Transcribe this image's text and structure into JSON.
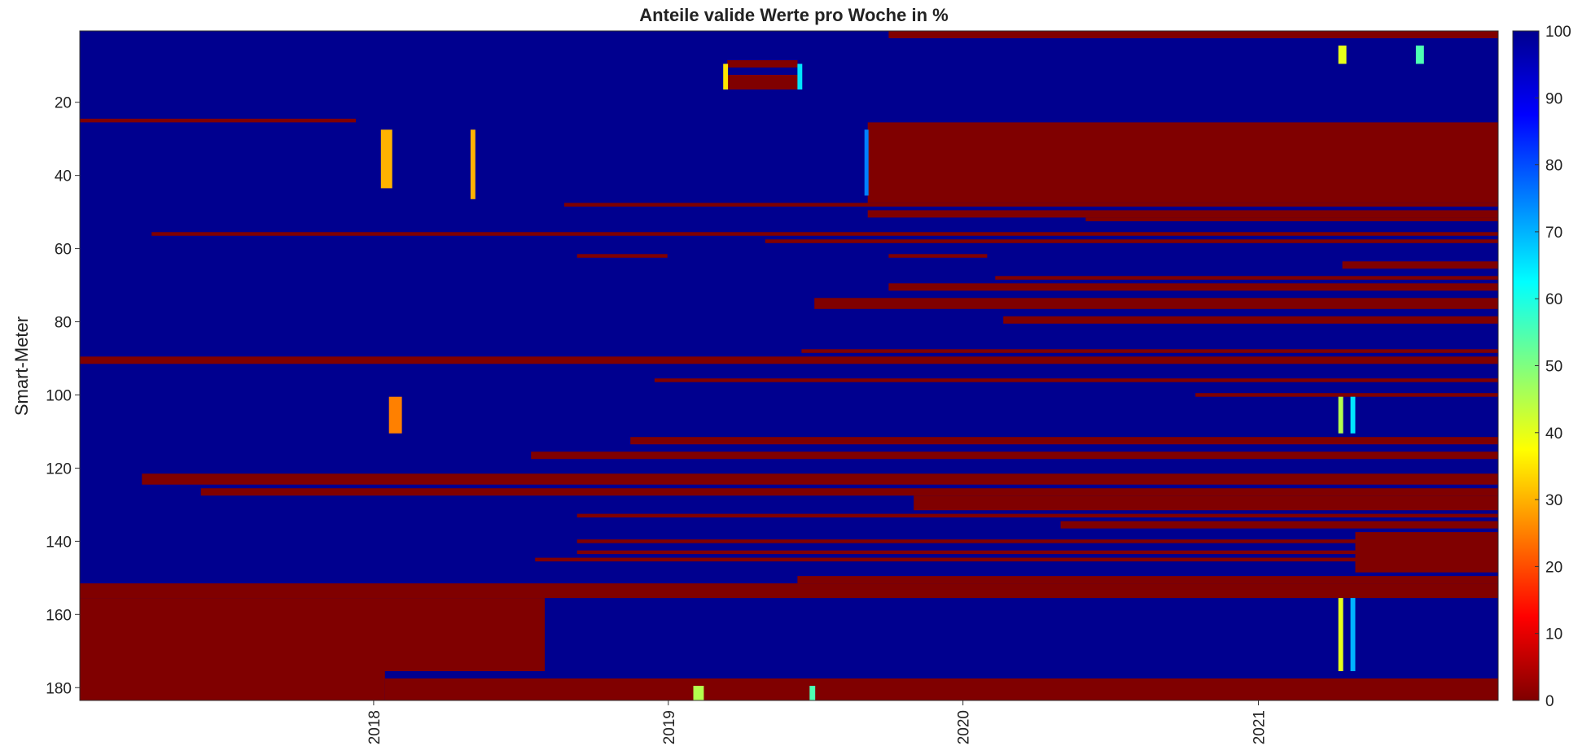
{
  "chart_data": {
    "type": "heatmap",
    "title": "Anteile valide Werte pro Woche in %",
    "xlabel": "",
    "ylabel": "Smart-Meter",
    "x_tick_labels": [
      "2018",
      "2019",
      "2020",
      "2021"
    ],
    "x_ticks_date": [
      "2018-01-01",
      "2019-01-01",
      "2020-01-01",
      "2021-01-01"
    ],
    "x_range": [
      "2017-01-02",
      "2021-10-25"
    ],
    "y_ticks": [
      20,
      40,
      60,
      80,
      100,
      120,
      140,
      160,
      180
    ],
    "y_range": [
      1,
      183
    ],
    "colorbar": {
      "ticks": [
        0,
        10,
        20,
        30,
        40,
        50,
        60,
        70,
        80,
        90,
        100
      ],
      "range": [
        0,
        100
      ],
      "colormap": "jet (reversed)",
      "low_color": "#800000",
      "high_color": "#00008f"
    },
    "default_value": 100,
    "low_blocks": [
      {
        "meters": [
          1,
          2
        ],
        "from": "2019-10-01",
        "to": "2021-10-25",
        "value": 0
      },
      {
        "meters": [
          25,
          25
        ],
        "from": "2017-01-02",
        "to": "2017-12-10",
        "value": 0
      },
      {
        "meters": [
          26,
          47
        ],
        "from": "2019-09-05",
        "to": "2021-10-25",
        "value": 0
      },
      {
        "meters": [
          9,
          10
        ],
        "from": "2019-03-15",
        "to": "2019-06-10",
        "value": 0
      },
      {
        "meters": [
          13,
          16
        ],
        "from": "2019-03-15",
        "to": "2019-06-10",
        "value": 0
      },
      {
        "meters": [
          48,
          48
        ],
        "from": "2018-08-25",
        "to": "2021-10-25",
        "value": 0
      },
      {
        "meters": [
          50,
          51
        ],
        "from": "2019-09-05",
        "to": "2021-10-25",
        "value": 0
      },
      {
        "meters": [
          52,
          52
        ],
        "from": "2020-06-01",
        "to": "2021-10-25",
        "value": 0
      },
      {
        "meters": [
          56,
          56
        ],
        "from": "2017-04-01",
        "to": "2021-10-25",
        "value": 0
      },
      {
        "meters": [
          58,
          58
        ],
        "from": "2019-05-01",
        "to": "2021-10-25",
        "value": 0
      },
      {
        "meters": [
          62,
          62
        ],
        "from": "2018-09-10",
        "to": "2018-12-31",
        "value": 0
      },
      {
        "meters": [
          62,
          62
        ],
        "from": "2019-10-01",
        "to": "2020-01-31",
        "value": 0
      },
      {
        "meters": [
          64,
          65
        ],
        "from": "2021-04-15",
        "to": "2021-10-25",
        "value": 0
      },
      {
        "meters": [
          68,
          68
        ],
        "from": "2020-02-10",
        "to": "2021-10-25",
        "value": 0
      },
      {
        "meters": [
          70,
          71
        ],
        "from": "2019-10-01",
        "to": "2021-10-25",
        "value": 0
      },
      {
        "meters": [
          74,
          76
        ],
        "from": "2019-07-01",
        "to": "2021-10-25",
        "value": 0
      },
      {
        "meters": [
          79,
          80
        ],
        "from": "2020-02-20",
        "to": "2021-10-25",
        "value": 0
      },
      {
        "meters": [
          88,
          88
        ],
        "from": "2019-06-15",
        "to": "2021-10-25",
        "value": 0
      },
      {
        "meters": [
          90,
          91
        ],
        "from": "2017-01-02",
        "to": "2021-10-25",
        "value": 0
      },
      {
        "meters": [
          96,
          96
        ],
        "from": "2018-12-15",
        "to": "2021-10-25",
        "value": 0
      },
      {
        "meters": [
          100,
          100
        ],
        "from": "2020-10-15",
        "to": "2021-10-25",
        "value": 0
      },
      {
        "meters": [
          112,
          113
        ],
        "from": "2018-11-15",
        "to": "2021-10-25",
        "value": 0
      },
      {
        "meters": [
          116,
          117
        ],
        "from": "2018-07-15",
        "to": "2021-10-25",
        "value": 0
      },
      {
        "meters": [
          122,
          124
        ],
        "from": "2017-03-20",
        "to": "2021-10-25",
        "value": 0
      },
      {
        "meters": [
          126,
          127
        ],
        "from": "2017-06-01",
        "to": "2021-10-25",
        "value": 0
      },
      {
        "meters": [
          128,
          131
        ],
        "from": "2019-11-01",
        "to": "2021-10-25",
        "value": 0
      },
      {
        "meters": [
          133,
          133
        ],
        "from": "2018-09-10",
        "to": "2021-10-25",
        "value": 0
      },
      {
        "meters": [
          135,
          136
        ],
        "from": "2020-05-01",
        "to": "2021-10-25",
        "value": 0
      },
      {
        "meters": [
          138,
          148
        ],
        "from": "2021-05-01",
        "to": "2021-10-25",
        "value": 0
      },
      {
        "meters": [
          140,
          140
        ],
        "from": "2018-09-10",
        "to": "2021-10-25",
        "value": 0
      },
      {
        "meters": [
          143,
          143
        ],
        "from": "2018-09-10",
        "to": "2021-10-25",
        "value": 0
      },
      {
        "meters": [
          145,
          145
        ],
        "from": "2018-07-20",
        "to": "2021-10-25",
        "value": 0
      },
      {
        "meters": [
          150,
          151
        ],
        "from": "2019-06-10",
        "to": "2021-10-25",
        "value": 0
      },
      {
        "meters": [
          152,
          155
        ],
        "from": "2017-01-02",
        "to": "2021-10-25",
        "value": 0
      },
      {
        "meters": [
          156,
          175
        ],
        "from": "2017-01-02",
        "to": "2018-08-01",
        "value": 0
      },
      {
        "meters": [
          178,
          183
        ],
        "from": "2018-01-15",
        "to": "2021-10-25",
        "value": 0
      },
      {
        "meters": [
          176,
          183
        ],
        "from": "2017-01-02",
        "to": "2018-01-15",
        "value": 0
      }
    ],
    "mid_blocks": [
      {
        "meters": [
          5,
          9
        ],
        "from": "2021-04-10",
        "to": "2021-04-20",
        "value": 40
      },
      {
        "meters": [
          5,
          9
        ],
        "from": "2021-07-15",
        "to": "2021-07-25",
        "value": 55
      },
      {
        "meters": [
          101,
          110
        ],
        "from": "2018-01-20",
        "to": "2018-02-05",
        "value": 25
      },
      {
        "meters": [
          101,
          110
        ],
        "from": "2021-04-10",
        "to": "2021-04-16",
        "value": 45
      },
      {
        "meters": [
          101,
          110
        ],
        "from": "2021-04-25",
        "to": "2021-05-01",
        "value": 65
      },
      {
        "meters": [
          156,
          175
        ],
        "from": "2021-04-10",
        "to": "2021-04-16",
        "value": 40
      },
      {
        "meters": [
          156,
          175
        ],
        "from": "2021-04-25",
        "to": "2021-05-01",
        "value": 70
      },
      {
        "meters": [
          180,
          183
        ],
        "from": "2019-02-01",
        "to": "2019-02-14",
        "value": 45
      },
      {
        "meters": [
          180,
          183
        ],
        "from": "2019-06-25",
        "to": "2019-07-02",
        "value": 55
      },
      {
        "meters": [
          10,
          16
        ],
        "from": "2019-03-10",
        "to": "2019-03-16",
        "value": 35
      },
      {
        "meters": [
          10,
          16
        ],
        "from": "2019-06-10",
        "to": "2019-06-16",
        "value": 65
      },
      {
        "meters": [
          28,
          45
        ],
        "from": "2019-09-01",
        "to": "2019-09-06",
        "value": 75
      },
      {
        "meters": [
          28,
          43
        ],
        "from": "2018-01-10",
        "to": "2018-01-24",
        "value": 30
      },
      {
        "meters": [
          28,
          46
        ],
        "from": "2018-05-01",
        "to": "2018-05-07",
        "value": 30
      }
    ]
  }
}
